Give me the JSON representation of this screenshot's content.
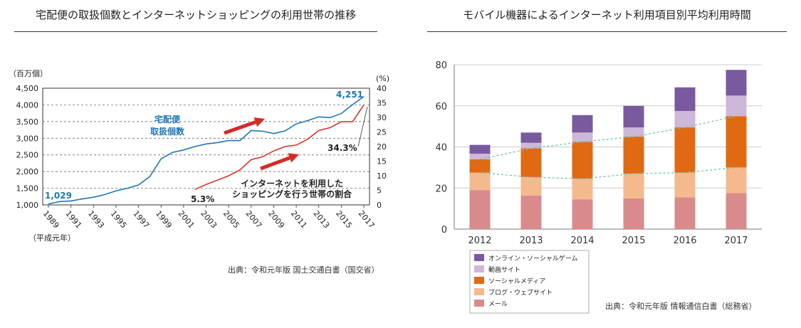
{
  "left_title": "宅配便の取扱個数とインターネットショッピングの利用世帯の推移",
  "right_title": "モバイル機器によるインターネット利用項目別平均利用時間",
  "left_source": "出典：令和元年版 国土交通白書（国交省）",
  "right_source": "出典：令和元年版 情報通信白書（総務省）",
  "colors": {
    "blue": "#1f77b4",
    "red": "#e0302a",
    "arrow": "#d62a2a"
  },
  "chart_data": [
    {
      "type": "line",
      "title": "宅配便の取扱個数とインターネットショッピングの利用世帯の推移",
      "ylabel": "（百万個）",
      "y2label": "(%)",
      "xnote": "（平成元年）",
      "ylim": [
        1000,
        4500
      ],
      "y_ticks": [
        "1,000",
        "1,500",
        "2,000",
        "2,500",
        "3,000",
        "3,500",
        "4,000",
        "4,500"
      ],
      "y2lim": [
        0,
        40
      ],
      "y2_ticks": [
        "0",
        "5",
        "10",
        "15",
        "20",
        "25",
        "30",
        "35",
        "40"
      ],
      "x_ticks": [
        "1989",
        "1991",
        "1993",
        "1995",
        "1997",
        "1999",
        "2001",
        "2003",
        "2005",
        "2007",
        "2009",
        "2011",
        "2013",
        "2015",
        "2017"
      ],
      "series": [
        {
          "name": "宅配便取扱個数",
          "label_lines": [
            "宅配便",
            "取扱個数"
          ],
          "axis": "left",
          "color": "#1f77b4",
          "x": [
            1989,
            1990,
            1991,
            1992,
            1993,
            1994,
            1995,
            1996,
            1997,
            1998,
            1999,
            2000,
            2001,
            2002,
            2003,
            2004,
            2005,
            2006,
            2007,
            2008,
            2009,
            2010,
            2011,
            2012,
            2013,
            2014,
            2015,
            2016,
            2017
          ],
          "values": [
            1029,
            1100,
            1120,
            1180,
            1230,
            1310,
            1420,
            1500,
            1600,
            1850,
            2380,
            2570,
            2650,
            2750,
            2830,
            2870,
            2930,
            2930,
            3230,
            3210,
            3140,
            3220,
            3430,
            3530,
            3640,
            3620,
            3740,
            4010,
            4251
          ]
        },
        {
          "name": "インターネットを利用したショッピングを行う世帯の割合",
          "label_lines": [
            "インターネットを利用した",
            "ショッピングを行う世帯の割合"
          ],
          "axis": "right",
          "color": "#e0302a",
          "x": [
            2002,
            2003,
            2004,
            2005,
            2006,
            2007,
            2008,
            2009,
            2010,
            2011,
            2012,
            2013,
            2014,
            2015,
            2016,
            2017
          ],
          "values": [
            5.3,
            7.0,
            8.5,
            10.0,
            12.0,
            15.5,
            16.5,
            18.5,
            20.0,
            20.5,
            22.5,
            25.5,
            26.5,
            28.5,
            28.5,
            34.3
          ]
        }
      ],
      "annotations": {
        "start_value": "1,029",
        "end_value": "4,251",
        "start_pct": "5.3%",
        "end_pct": "34.3%"
      }
    },
    {
      "type": "bar",
      "stacked": true,
      "title": "モバイル機器によるインターネット利用項目別平均利用時間",
      "ylim": [
        0,
        80
      ],
      "y_ticks": [
        "0",
        "20",
        "40",
        "60",
        "80"
      ],
      "categories": [
        "2012",
        "2013",
        "2014",
        "2015",
        "2016",
        "2017"
      ],
      "series": [
        {
          "name": "メール",
          "color": "#d98b8b",
          "values": [
            19.0,
            16.3,
            14.5,
            15.0,
            15.5,
            17.5
          ]
        },
        {
          "name": "ブログ・ウェブサイト",
          "color": "#f5b98e",
          "values": [
            8.5,
            9.0,
            10.0,
            12.0,
            12.0,
            12.5
          ]
        },
        {
          "name": "ソーシャルメディア",
          "color": "#e06a14",
          "values": [
            6.5,
            14.0,
            18.0,
            18.0,
            22.0,
            25.0
          ]
        },
        {
          "name": "動画サイト",
          "color": "#cdb8d9",
          "values": [
            2.7,
            2.7,
            4.5,
            4.5,
            8.0,
            10.0
          ]
        },
        {
          "name": "オンライン・ソーシャルゲーム",
          "color": "#7a5a9e",
          "values": [
            4.3,
            5.0,
            8.5,
            10.5,
            11.5,
            12.5
          ]
        }
      ],
      "legend_position": "bottom-left"
    }
  ]
}
